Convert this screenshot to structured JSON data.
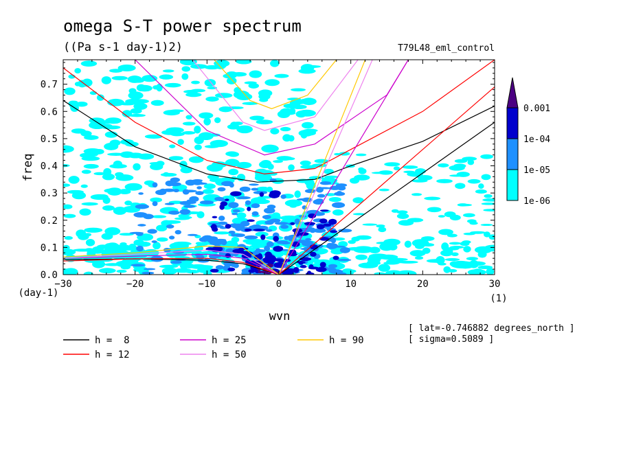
{
  "chart_data": {
    "type": "heatmap",
    "title": "omega S-T power spectrum",
    "subtitle": "((Pa s-1 day-1)2)",
    "case_name": "T79L48_eml_control",
    "xlabel": "wvn",
    "ylabel": "freq",
    "x_unit": "(1)",
    "y_unit": "(day-1)",
    "xlim": [
      -30,
      30
    ],
    "ylim": [
      0.0,
      0.79
    ],
    "x_ticks": [
      -30,
      -20,
      -10,
      0,
      10,
      20,
      30
    ],
    "x_tick_labels": [
      "−30",
      "−20",
      "−10",
      "0",
      "10",
      "20",
      "30"
    ],
    "y_ticks": [
      0.0,
      0.1,
      0.2,
      0.3,
      0.4,
      0.5,
      0.6,
      0.7
    ],
    "y_tick_labels": [
      "0.0",
      "0.1",
      "0.2",
      "0.3",
      "0.4",
      "0.5",
      "0.6",
      "0.7"
    ],
    "grid": false,
    "colorbar": {
      "placement": "right",
      "levels": [
        "1e-06",
        "1e-05",
        "1e-04",
        "0.001"
      ],
      "colors": [
        "#00ffff",
        "#1e90ff",
        "#0000cd",
        "#4b0082"
      ],
      "extend": "max"
    },
    "annotations": [
      "[ lat=-0.746882 degrees_north ]",
      "[ sigma=0.5089 ]"
    ],
    "legend": {
      "placement": "bottom",
      "entries": [
        {
          "label": "h =  8",
          "color": "#000000"
        },
        {
          "label": "h = 12",
          "color": "#ff0000"
        },
        {
          "label": "h = 25",
          "color": "#cc00cc"
        },
        {
          "label": "h = 50",
          "color": "#ee82ee"
        },
        {
          "label": "h = 90",
          "color": "#ffc800"
        }
      ]
    },
    "series": [
      {
        "name": "h =  8",
        "color": "#000000",
        "kelvin": [
          [
            0,
            0
          ],
          [
            30,
            0.56
          ]
        ],
        "mrg": [
          [
            -30,
            0.055
          ],
          [
            -20,
            0.058
          ],
          [
            -10,
            0.053
          ],
          [
            -5,
            0.04
          ],
          [
            0,
            0
          ]
        ],
        "ig": [
          [
            -30,
            0.64
          ],
          [
            -20,
            0.47
          ],
          [
            -10,
            0.37
          ],
          [
            -3,
            0.34
          ],
          [
            5,
            0.35
          ],
          [
            10,
            0.4
          ],
          [
            20,
            0.49
          ],
          [
            30,
            0.62
          ]
        ]
      },
      {
        "name": "h = 12",
        "color": "#ff0000",
        "kelvin": [
          [
            0,
            0
          ],
          [
            30,
            0.69
          ]
        ],
        "mrg": [
          [
            -30,
            0.05
          ],
          [
            -20,
            0.058
          ],
          [
            -10,
            0.06
          ],
          [
            -5,
            0.045
          ],
          [
            0,
            0
          ]
        ],
        "ig": [
          [
            -30,
            0.76
          ],
          [
            -20,
            0.56
          ],
          [
            -10,
            0.42
          ],
          [
            -2,
            0.37
          ],
          [
            5,
            0.39
          ],
          [
            10,
            0.46
          ],
          [
            20,
            0.6
          ],
          [
            30,
            0.79
          ]
        ]
      },
      {
        "name": "h = 25",
        "color": "#cc00cc",
        "kelvin": [
          [
            0,
            0
          ],
          [
            18,
            0.79
          ]
        ],
        "mrg": [
          [
            -30,
            0.06
          ],
          [
            -20,
            0.068
          ],
          [
            -10,
            0.075
          ],
          [
            -5,
            0.06
          ],
          [
            0,
            0
          ]
        ],
        "ig": [
          [
            -20,
            0.79
          ],
          [
            -10,
            0.53
          ],
          [
            -2,
            0.44
          ],
          [
            5,
            0.48
          ],
          [
            15,
            0.66
          ],
          [
            18,
            0.79
          ]
        ]
      },
      {
        "name": "h = 50",
        "color": "#ee82ee",
        "kelvin": [
          [
            0,
            0
          ],
          [
            13,
            0.79
          ]
        ],
        "mrg": [
          [
            -30,
            0.06
          ],
          [
            -20,
            0.075
          ],
          [
            -10,
            0.09
          ],
          [
            -5,
            0.075
          ],
          [
            0,
            0
          ]
        ],
        "ig": [
          [
            -12,
            0.79
          ],
          [
            -5,
            0.56
          ],
          [
            -2,
            0.53
          ],
          [
            5,
            0.58
          ],
          [
            11,
            0.79
          ]
        ]
      },
      {
        "name": "h = 90",
        "color": "#ffc800",
        "kelvin": [
          [
            0,
            0
          ],
          [
            12,
            0.79
          ]
        ],
        "mrg": [
          [
            -30,
            0.065
          ],
          [
            -20,
            0.08
          ],
          [
            -10,
            0.105
          ],
          [
            -5,
            0.1
          ],
          [
            0,
            0
          ]
        ],
        "ig": [
          [
            -9,
            0.79
          ],
          [
            -4,
            0.64
          ],
          [
            -1,
            0.61
          ],
          [
            4,
            0.66
          ],
          [
            8,
            0.79
          ]
        ]
      }
    ],
    "power_field": [
      {
        "level": "1e-06",
        "x": [
          -30,
          30
        ],
        "y": [
          0.0,
          0.79
        ],
        "note": "widespread over western half and near equator"
      },
      {
        "level": "1e-05",
        "x": [
          -20,
          10
        ],
        "y": [
          0.0,
          0.35
        ]
      },
      {
        "level": "1e-04",
        "x": [
          -10,
          8
        ],
        "y": [
          0.0,
          0.3
        ]
      },
      {
        "level": "0.001",
        "x": [
          -3,
          0
        ],
        "y": [
          0.0,
          0.05
        ]
      }
    ]
  }
}
